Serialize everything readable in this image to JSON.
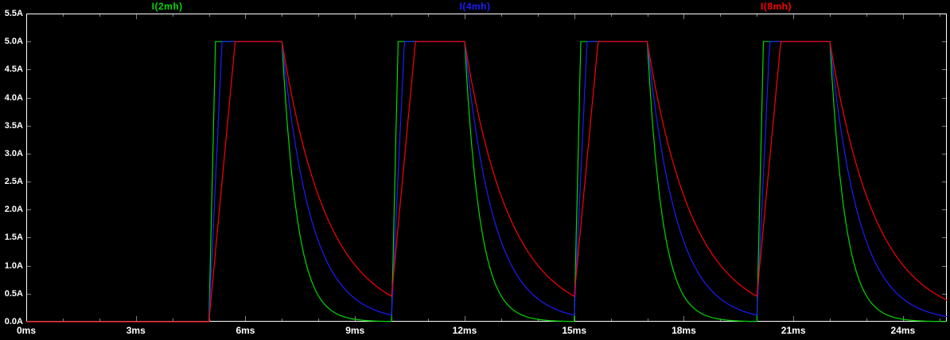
{
  "window": {
    "background": "#000000",
    "plot_border_color": "#ffffff",
    "tick_color": "#808080",
    "axis_label_color": "#ffffff"
  },
  "chart_data": {
    "type": "line",
    "title": "",
    "xlabel": "",
    "ylabel": "",
    "x_unit": "ms",
    "y_unit": "A",
    "xlim": [
      0,
      25.2
    ],
    "ylim": [
      0,
      5.5
    ],
    "grid": false,
    "legend_position": "top",
    "xtick_labels": [
      "0ms",
      "3ms",
      "6ms",
      "9ms",
      "12ms",
      "15ms",
      "18ms",
      "21ms",
      "24ms"
    ],
    "xtick_values_ms": [
      0,
      3,
      6,
      9,
      12,
      15,
      18,
      21,
      24
    ],
    "xtick_minor_step_ms": 1,
    "ytick_labels": [
      "5.5A",
      "5.0A",
      "4.5A",
      "4.0A",
      "3.5A",
      "3.0A",
      "2.5A",
      "2.0A",
      "1.5A",
      "1.0A",
      "0.5A",
      "0.0A"
    ],
    "ytick_values_A": [
      5.5,
      5.0,
      4.5,
      4.0,
      3.5,
      3.0,
      2.5,
      2.0,
      1.5,
      1.0,
      0.5,
      0.0
    ],
    "pulse": {
      "amplitude_A": 5.0,
      "first_rise_start_ms": 5.0,
      "on_duration_ms": 2.0,
      "period_ms": 5.0,
      "num_pulses": 4
    },
    "series": [
      {
        "name": "I(2mh)",
        "color": "#00d800",
        "rise_time_ms": 0.18,
        "decay_tau_ms": 0.42
      },
      {
        "name": "I(4mh)",
        "color": "#1c1cff",
        "rise_time_ms": 0.36,
        "decay_tau_ms": 0.8
      },
      {
        "name": "I(8mh)",
        "color": "#ff0000",
        "rise_time_ms": 0.72,
        "decay_tau_ms": 1.25
      }
    ]
  }
}
